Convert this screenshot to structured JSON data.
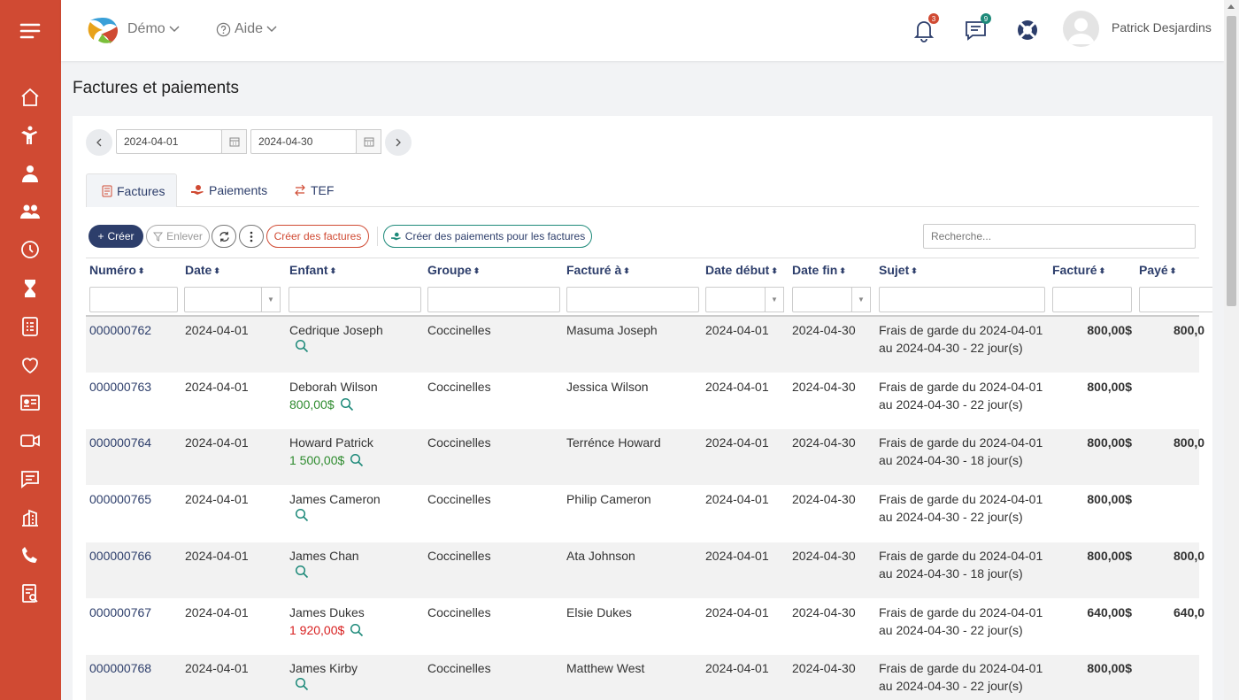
{
  "header": {
    "org_label": "Démo",
    "help_label": "Aide",
    "notifications_count": "3",
    "messages_count": "9",
    "user_name": "Patrick Desjardins"
  },
  "page": {
    "title": "Factures et paiements"
  },
  "date_range": {
    "start": "2024-04-01",
    "end": "2024-04-30"
  },
  "tabs": [
    {
      "label": "Factures",
      "icon": "invoice-icon"
    },
    {
      "label": "Paiements",
      "icon": "payment-icon"
    },
    {
      "label": "TEF",
      "icon": "transfer-icon"
    }
  ],
  "toolbar": {
    "create_label": "Créer",
    "remove_label": "Enlever",
    "create_invoices_label": "Créer des factures",
    "create_payments_label": "Créer des paiements pour les factures",
    "search_placeholder": "Recherche..."
  },
  "table": {
    "columns": [
      "Numéro",
      "Date",
      "Enfant",
      "Groupe",
      "Facturé à",
      "Date début",
      "Date fin",
      "Sujet",
      "Facturé",
      "Payé"
    ],
    "rows": [
      {
        "numero": "000000762",
        "date": "2024-04-01",
        "enfant": "Cedrique Joseph",
        "solde": "",
        "solde_type": "",
        "groupe": "Coccinelles",
        "facture_a": "Masuma Joseph",
        "debut": "2024-04-01",
        "fin": "2024-04-30",
        "sujet1": "Frais de garde du 2024-04-01",
        "sujet2": "au 2024-04-30 - 22 jour(s)",
        "facture": "800,00$",
        "paye": "800,0"
      },
      {
        "numero": "000000763",
        "date": "2024-04-01",
        "enfant": "Deborah Wilson",
        "solde": "800,00$",
        "solde_type": "green",
        "groupe": "Coccinelles",
        "facture_a": "Jessica Wilson",
        "debut": "2024-04-01",
        "fin": "2024-04-30",
        "sujet1": "Frais de garde du 2024-04-01",
        "sujet2": "au 2024-04-30 - 22 jour(s)",
        "facture": "800,00$",
        "paye": ""
      },
      {
        "numero": "000000764",
        "date": "2024-04-01",
        "enfant": "Howard Patrick",
        "solde": "1 500,00$",
        "solde_type": "green",
        "groupe": "Coccinelles",
        "facture_a": "Terréncе Howard",
        "debut": "2024-04-01",
        "fin": "2024-04-30",
        "sujet1": "Frais de garde du 2024-04-01",
        "sujet2": "au 2024-04-30 - 18 jour(s)",
        "facture": "800,00$",
        "paye": "800,0"
      },
      {
        "numero": "000000765",
        "date": "2024-04-01",
        "enfant": "James Cameron",
        "solde": "",
        "solde_type": "",
        "groupe": "Coccinelles",
        "facture_a": "Philip Cameron",
        "debut": "2024-04-01",
        "fin": "2024-04-30",
        "sujet1": "Frais de garde du 2024-04-01",
        "sujet2": "au 2024-04-30 - 22 jour(s)",
        "facture": "800,00$",
        "paye": ""
      },
      {
        "numero": "000000766",
        "date": "2024-04-01",
        "enfant": "James Chan",
        "solde": "",
        "solde_type": "",
        "groupe": "Coccinelles",
        "facture_a": "Ata Johnson",
        "debut": "2024-04-01",
        "fin": "2024-04-30",
        "sujet1": "Frais de garde du 2024-04-01",
        "sujet2": "au 2024-04-30 - 18 jour(s)",
        "facture": "800,00$",
        "paye": "800,0"
      },
      {
        "numero": "000000767",
        "date": "2024-04-01",
        "enfant": "James Dukes",
        "solde": "1 920,00$",
        "solde_type": "red",
        "groupe": "Coccinelles",
        "facture_a": "Elsie Dukes",
        "debut": "2024-04-01",
        "fin": "2024-04-30",
        "sujet1": "Frais de garde du 2024-04-01",
        "sujet2": "au 2024-04-30 - 22 jour(s)",
        "facture": "640,00$",
        "paye": "640,0"
      },
      {
        "numero": "000000768",
        "date": "2024-04-01",
        "enfant": "James Kirby",
        "solde": "",
        "solde_type": "",
        "groupe": "Coccinelles",
        "facture_a": "Matthew West",
        "debut": "2024-04-01",
        "fin": "2024-04-30",
        "sujet1": "Frais de garde du 2024-04-01",
        "sujet2": "au 2024-04-30 - 22 jour(s)",
        "facture": "800,00$",
        "paye": ""
      }
    ]
  },
  "colors": {
    "sidebar": "#d04a33",
    "primary": "#2d3e6b",
    "accent_teal": "#1e8a7a",
    "amount_green": "#2e8b2e",
    "amount_red": "#d82020"
  }
}
